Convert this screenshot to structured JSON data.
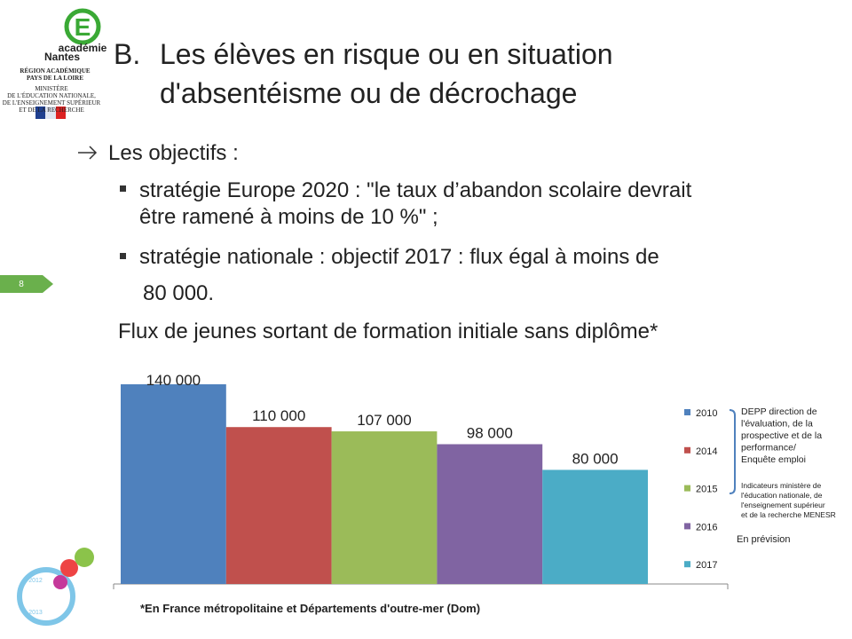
{
  "logo": {
    "academie": "académie",
    "nantes": "Nantes",
    "region": [
      "RÉGION ACADÉMIQUE",
      "PAYS DE LA LOIRE"
    ],
    "ministere": [
      "MINISTÈRE",
      "DE L'ÉDUCATION NATIONALE,",
      "DE L'ENSEIGNEMENT SUPÉRIEUR",
      "ET DE LA RECHERCHE"
    ],
    "years": [
      "2012",
      "2013"
    ]
  },
  "page_number": "8",
  "title": {
    "marker": "B.",
    "lines": [
      "Les élèves en risque ou en situation",
      "d'absentéisme ou de décrochage"
    ]
  },
  "body": {
    "intro": "Les objectifs :",
    "bullets": [
      [
        "stratégie Europe 2020 : \"le taux d’abandon scolaire devrait",
        "être ramené à moins de 10 %\" ;"
      ],
      [
        "stratégie nationale : objectif 2017 : flux égal à moins de",
        "80 000."
      ]
    ]
  },
  "chart_data": {
    "type": "bar",
    "title": "Flux de jeunes sortant de formation initiale sans diplôme*",
    "categories": [
      "2010",
      "2014",
      "2015",
      "2016",
      "2017"
    ],
    "values": [
      140000,
      110000,
      107000,
      98000,
      80000
    ],
    "value_labels": [
      "140 000",
      "110 000",
      "107 000",
      "98 000",
      "80 000"
    ],
    "colors": [
      "#4f81bd",
      "#c0504d",
      "#9bbb59",
      "#8064a2",
      "#4bacc6"
    ],
    "legend": "right",
    "annotations": [
      [
        "DEPP direction de",
        "l'évaluation, de la",
        "prospective et de la",
        "performance/",
        "Enquête emploi"
      ],
      [
        "Indicateurs ministère de",
        "l'éducation nationale, de",
        "l'enseignement supérieur",
        "et de la recherche MENESR"
      ],
      [
        "En prévision"
      ]
    ]
  },
  "footnote": "*En France métropolitaine et Départements d'outre-mer (Dom)"
}
